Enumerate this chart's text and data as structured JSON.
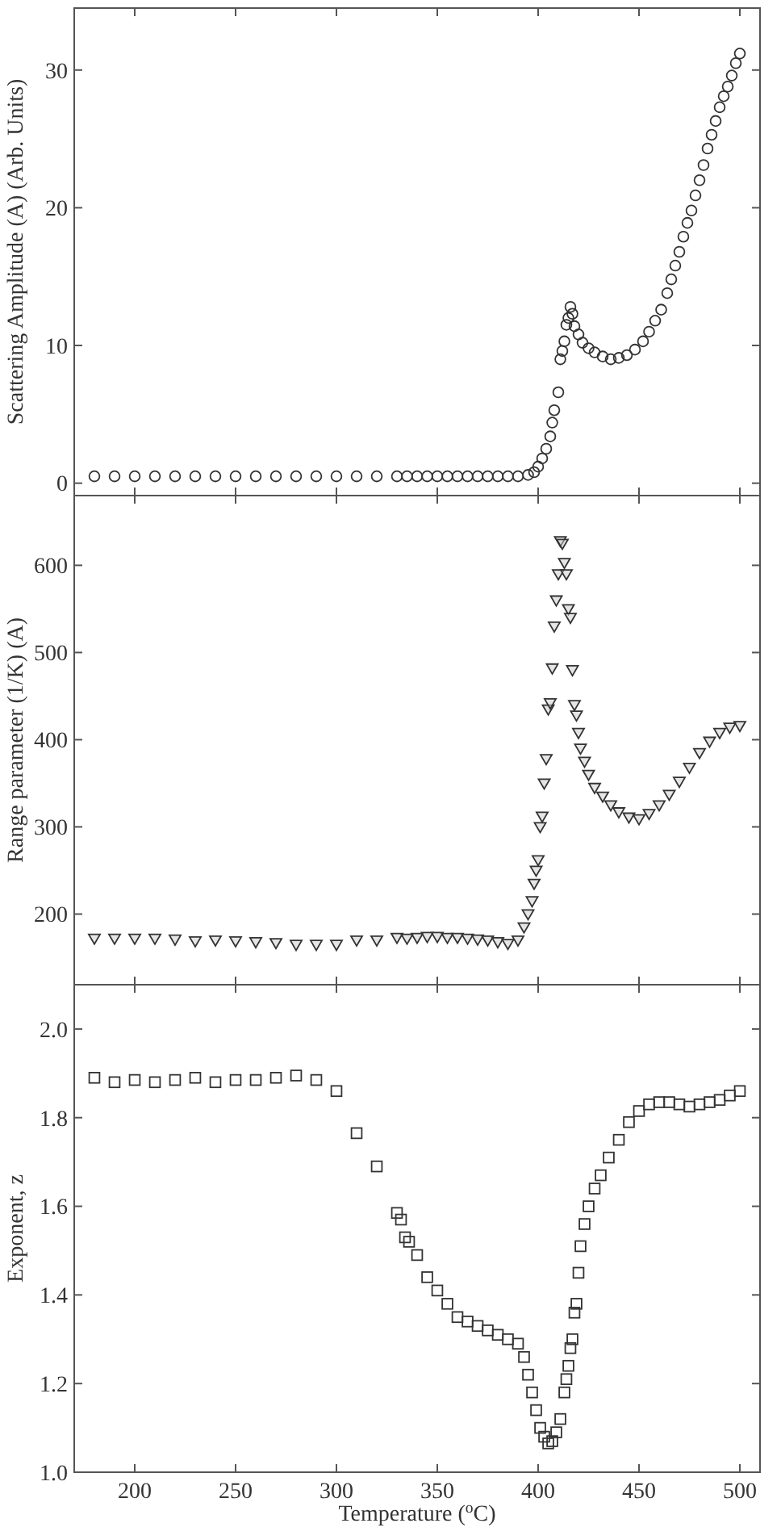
{
  "chart_data": [
    {
      "type": "scatter",
      "ylabel": "Scattering Amplitude (A) (Arb. Units)",
      "marker": "circle",
      "color": "#333333",
      "tick_labels": "y",
      "xlim": [
        170,
        510
      ],
      "ylim": [
        -0.9,
        34.5
      ],
      "xticks": [
        200,
        250,
        300,
        350,
        400,
        450,
        500
      ],
      "yticks": [
        0,
        10,
        20,
        30
      ],
      "x": [
        180,
        190,
        200,
        210,
        220,
        230,
        240,
        250,
        260,
        270,
        280,
        290,
        300,
        310,
        320,
        330,
        335,
        340,
        345,
        350,
        355,
        360,
        365,
        370,
        375,
        380,
        385,
        390,
        395,
        398,
        400,
        402,
        404,
        406,
        407,
        408,
        410,
        411,
        412,
        413,
        414,
        415,
        416,
        417,
        418,
        420,
        422,
        425,
        428,
        432,
        436,
        440,
        444,
        448,
        452,
        455,
        458,
        461,
        464,
        466,
        468,
        470,
        472,
        474,
        476,
        478,
        480,
        482,
        484,
        486,
        488,
        490,
        492,
        494,
        496,
        498,
        500
      ],
      "values": [
        0.5,
        0.5,
        0.5,
        0.5,
        0.5,
        0.5,
        0.5,
        0.5,
        0.5,
        0.5,
        0.5,
        0.5,
        0.5,
        0.5,
        0.5,
        0.5,
        0.5,
        0.5,
        0.5,
        0.5,
        0.5,
        0.5,
        0.5,
        0.5,
        0.5,
        0.5,
        0.5,
        0.5,
        0.6,
        0.8,
        1.2,
        1.8,
        2.5,
        3.4,
        4.4,
        5.3,
        6.6,
        9.0,
        9.6,
        10.3,
        11.5,
        12.0,
        12.8,
        12.3,
        11.4,
        10.8,
        10.2,
        9.8,
        9.5,
        9.2,
        9.0,
        9.1,
        9.3,
        9.7,
        10.3,
        11.0,
        11.8,
        12.6,
        13.8,
        14.8,
        15.8,
        16.8,
        17.9,
        18.9,
        19.8,
        20.9,
        22.0,
        23.1,
        24.3,
        25.3,
        26.3,
        27.3,
        28.1,
        28.8,
        29.6,
        30.5,
        31.2
      ]
    },
    {
      "type": "scatter",
      "ylabel": "Range parameter (1/K) (A)",
      "marker": "triangle",
      "color": "#333333",
      "tick_labels": "y",
      "xlim": [
        170,
        510
      ],
      "ylim": [
        119,
        680
      ],
      "xticks": [
        200,
        250,
        300,
        350,
        400,
        450,
        500
      ],
      "yticks": [
        200,
        300,
        400,
        500,
        600
      ],
      "x": [
        180,
        190,
        200,
        210,
        220,
        230,
        240,
        250,
        260,
        270,
        280,
        290,
        300,
        310,
        320,
        330,
        335,
        340,
        345,
        350,
        355,
        360,
        365,
        370,
        375,
        380,
        385,
        390,
        393,
        395,
        397,
        398,
        399,
        400,
        401,
        402,
        403,
        404,
        405,
        406,
        407,
        408,
        409,
        410,
        411,
        412,
        413,
        414,
        415,
        416,
        417,
        418,
        419,
        420,
        421,
        423,
        425,
        428,
        432,
        436,
        440,
        445,
        450,
        455,
        460,
        465,
        470,
        475,
        480,
        485,
        490,
        495,
        500
      ],
      "values": [
        172,
        172,
        172,
        172,
        171,
        169,
        170,
        169,
        168,
        167,
        165,
        165,
        165,
        170,
        170,
        173,
        172,
        173,
        174,
        174,
        173,
        173,
        172,
        171,
        170,
        168,
        166,
        170,
        185,
        200,
        215,
        235,
        250,
        262,
        300,
        312,
        350,
        378,
        435,
        442,
        482,
        530,
        560,
        590,
        628,
        625,
        603,
        590,
        550,
        540,
        480,
        440,
        428,
        408,
        390,
        375,
        360,
        345,
        335,
        325,
        317,
        311,
        309,
        315,
        325,
        337,
        352,
        368,
        385,
        398,
        408,
        414,
        416
      ]
    },
    {
      "type": "scatter",
      "ylabel": "Exponent, z",
      "xlabel": "Temperature ($^{o}$C)",
      "marker": "square",
      "color": "#333333",
      "xlim": [
        170,
        510
      ],
      "ylim": [
        1.0,
        2.1
      ],
      "xticks": [
        200,
        250,
        300,
        350,
        400,
        450,
        500
      ],
      "yticks": [
        {
          "value": 1.0,
          "label": "1.0"
        },
        1.2,
        1.4,
        1.6,
        1.8,
        {
          "value": 2.0,
          "label": "2.0"
        }
      ],
      "x": [
        180,
        190,
        200,
        210,
        220,
        230,
        240,
        250,
        260,
        270,
        280,
        290,
        300,
        310,
        320,
        330,
        332,
        334,
        336,
        340,
        345,
        350,
        355,
        360,
        365,
        370,
        375,
        380,
        385,
        390,
        393,
        395,
        397,
        399,
        401,
        403,
        405,
        407,
        409,
        411,
        413,
        414,
        415,
        416,
        417,
        418,
        419,
        420,
        421,
        423,
        425,
        428,
        431,
        435,
        440,
        445,
        450,
        455,
        460,
        465,
        470,
        475,
        480,
        485,
        490,
        495,
        500
      ],
      "values": [
        1.89,
        1.88,
        1.885,
        1.88,
        1.885,
        1.89,
        1.88,
        1.885,
        1.885,
        1.89,
        1.895,
        1.885,
        1.86,
        1.765,
        1.69,
        1.585,
        1.57,
        1.53,
        1.52,
        1.49,
        1.44,
        1.41,
        1.38,
        1.35,
        1.34,
        1.33,
        1.32,
        1.31,
        1.3,
        1.29,
        1.26,
        1.22,
        1.18,
        1.14,
        1.1,
        1.08,
        1.065,
        1.07,
        1.09,
        1.12,
        1.18,
        1.21,
        1.24,
        1.28,
        1.3,
        1.36,
        1.38,
        1.45,
        1.51,
        1.56,
        1.6,
        1.64,
        1.67,
        1.71,
        1.75,
        1.79,
        1.815,
        1.83,
        1.835,
        1.835,
        1.83,
        1.825,
        1.83,
        1.835,
        1.84,
        1.85,
        1.86
      ]
    }
  ]
}
